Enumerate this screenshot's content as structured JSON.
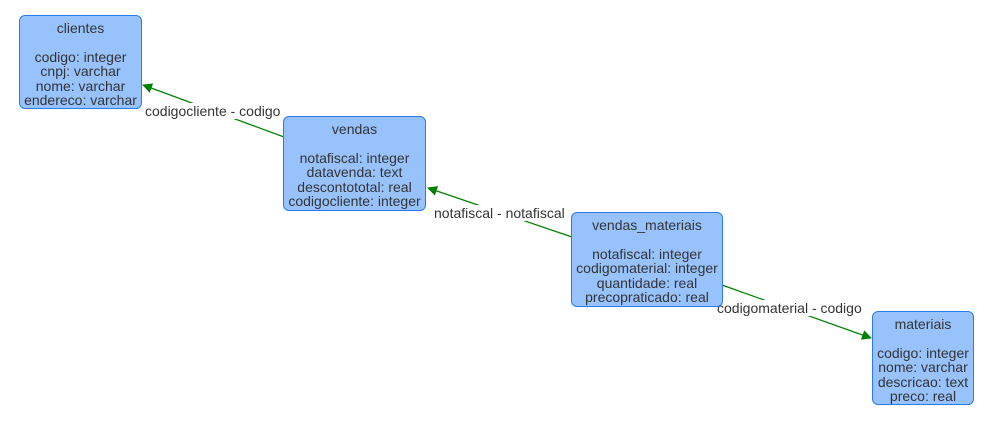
{
  "colors": {
    "node_fill": "#97c2fc",
    "node_border": "#2b7ce9",
    "edge": "#008000",
    "text": "#343434"
  },
  "tables": {
    "clientes": {
      "title": "clientes",
      "fields": [
        "codigo: integer",
        "cnpj: varchar",
        "nome: varchar",
        "endereco: varchar"
      ]
    },
    "vendas": {
      "title": "vendas",
      "fields": [
        "notafiscal: integer",
        "datavenda: text",
        "descontototal: real",
        "codigocliente: integer"
      ]
    },
    "vendas_materiais": {
      "title": "vendas_materiais",
      "fields": [
        "notafiscal: integer",
        "codigomaterial: integer",
        "quantidade: real",
        "precopraticado: real"
      ]
    },
    "materiais": {
      "title": "materiais",
      "fields": [
        "codigo: integer",
        "nome: varchar",
        "descricao: text",
        "preco: real"
      ]
    }
  },
  "relations": [
    {
      "from": "vendas",
      "to": "clientes",
      "label": "codigocliente - codigo"
    },
    {
      "from": "vendas_materiais",
      "to": "vendas",
      "label": "notafiscal - notafiscal"
    },
    {
      "from": "vendas_materiais",
      "to": "materiais",
      "label": "codigomaterial - codigo"
    }
  ]
}
